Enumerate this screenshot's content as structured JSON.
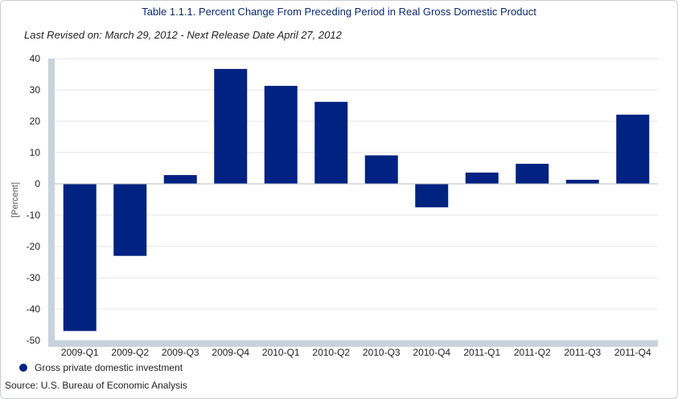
{
  "title": "Table 1.1.1. Percent Change From Preceding Period in Real Gross Domestic Product",
  "subtitle": "Last Revised on: March 29, 2012 - Next Release Date April 27, 2012",
  "source": "Source: U.S. Bureau of Economic Analysis",
  "colors": {
    "bar": "#002280",
    "axis_band": "#c8d2dc",
    "grid": "#e6e6e6"
  },
  "chart_data": {
    "type": "bar",
    "categories": [
      "2009-Q1",
      "2009-Q2",
      "2009-Q3",
      "2009-Q4",
      "2010-Q1",
      "2010-Q2",
      "2010-Q3",
      "2010-Q4",
      "2011-Q1",
      "2011-Q2",
      "2011-Q3",
      "2011-Q4"
    ],
    "series": [
      {
        "name": "Gross private domestic investment",
        "values": [
          -47.0,
          -23.0,
          2.8,
          36.7,
          31.3,
          26.2,
          9.1,
          -7.5,
          3.6,
          6.4,
          1.3,
          22.1
        ]
      }
    ],
    "ylabel": "[Percent]",
    "ylim": [
      -50,
      40
    ],
    "yticks": [
      40,
      30,
      20,
      10,
      0,
      -10,
      -20,
      -30,
      -40,
      -50
    ],
    "grid": true,
    "legend_position": "bottom-left"
  }
}
